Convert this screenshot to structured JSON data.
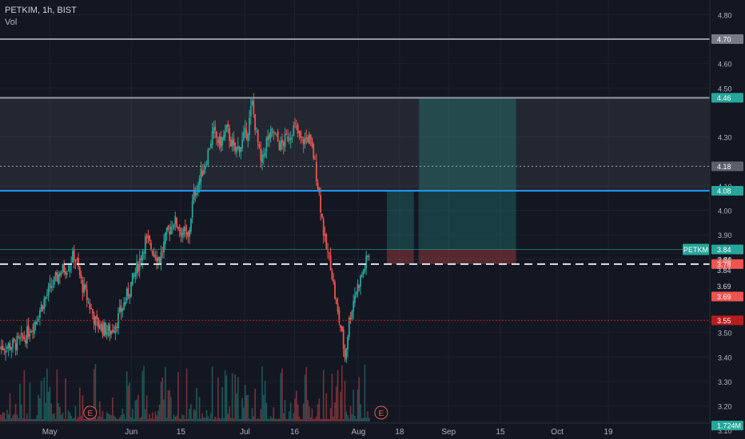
{
  "header": {
    "symbol_line": "PETKIM, 1h, BIST",
    "volume_label": "Vol"
  },
  "colors": {
    "background": "#131722",
    "up": "#26a69a",
    "down": "#ef5350",
    "blue_line": "#2196f3",
    "grey_line": "#9598a1"
  },
  "chart_data": {
    "type": "candlestick",
    "symbol": "PETKIM",
    "interval": "1h",
    "exchange": "BIST",
    "ylim": [
      3.13,
      4.86
    ],
    "y_ticks": [
      "4.80",
      "4.60",
      "4.50",
      "4.30",
      "4.10",
      "4.00",
      "3.90",
      "3.80",
      "3.50",
      "3.40",
      "3.30",
      "3.20",
      "3.10"
    ],
    "x_ticks": [
      {
        "label": "May",
        "x": 0.07
      },
      {
        "label": "Jun",
        "x": 0.185
      },
      {
        "label": "15",
        "x": 0.255
      },
      {
        "label": "Jul",
        "x": 0.345
      },
      {
        "label": "16",
        "x": 0.415
      },
      {
        "label": "Aug",
        "x": 0.505
      },
      {
        "label": "18",
        "x": 0.563
      },
      {
        "label": "Sep",
        "x": 0.632
      },
      {
        "label": "15",
        "x": 0.705
      },
      {
        "label": "Oct",
        "x": 0.785
      },
      {
        "label": "19",
        "x": 0.857
      }
    ],
    "levels": [
      {
        "value": 4.7,
        "label": "4.70",
        "style": "solid-grey",
        "badge": "#787b86"
      },
      {
        "value": 4.46,
        "label": "4.46",
        "style": "solid-grey",
        "badge": "#26a69a"
      },
      {
        "value": 4.18,
        "label": "4.18",
        "style": "dotted",
        "badge": "#5d606b"
      },
      {
        "value": 4.08,
        "label": "4.08",
        "style": "solid-blue",
        "badge": "#26a69a"
      },
      {
        "value": 3.78,
        "label": "3.78",
        "style": "dashed-white",
        "badge": "#ef5350"
      },
      {
        "value": 3.55,
        "label": "3.55",
        "style": "dotted-red",
        "badge": "#b71c1c"
      }
    ],
    "price_labels": [
      {
        "value": 3.84,
        "label": "3.84",
        "badge": "#26a69a"
      },
      {
        "value": 3.84,
        "label": "3.84",
        "badge": "none",
        "offset": 1
      },
      {
        "value": 3.84,
        "label": "3.84",
        "badge": "none",
        "offset": 2
      },
      {
        "value": 3.69,
        "label": "3.69",
        "badge": "none"
      },
      {
        "value": 3.69,
        "label": "3.69",
        "badge": "#ef5350",
        "offset": 1
      },
      {
        "value": 3.12,
        "label": "1.724M",
        "badge": "#26a69a"
      }
    ],
    "last_price_tag": "PETKM",
    "last_price": 3.84,
    "zones": {
      "range_top": 4.46,
      "range_bottom": 4.08,
      "rr_small": {
        "entry": 3.84,
        "target": 4.08,
        "stop": 3.78
      },
      "rr_big": {
        "entry": 3.84,
        "target": 4.46,
        "stop": 3.78
      }
    },
    "events": [
      "E",
      "E"
    ],
    "series_path": [
      [
        0.0,
        3.44
      ],
      [
        0.02,
        3.45
      ],
      [
        0.035,
        3.48
      ],
      [
        0.05,
        3.55
      ],
      [
        0.06,
        3.62
      ],
      [
        0.075,
        3.7
      ],
      [
        0.085,
        3.75
      ],
      [
        0.095,
        3.77
      ],
      [
        0.105,
        3.82
      ],
      [
        0.115,
        3.7
      ],
      [
        0.125,
        3.62
      ],
      [
        0.135,
        3.54
      ],
      [
        0.145,
        3.52
      ],
      [
        0.155,
        3.5
      ],
      [
        0.165,
        3.55
      ],
      [
        0.175,
        3.62
      ],
      [
        0.185,
        3.7
      ],
      [
        0.195,
        3.78
      ],
      [
        0.205,
        3.88
      ],
      [
        0.215,
        3.84
      ],
      [
        0.225,
        3.8
      ],
      [
        0.235,
        3.9
      ],
      [
        0.245,
        3.96
      ],
      [
        0.255,
        3.92
      ],
      [
        0.265,
        3.88
      ],
      [
        0.272,
        4.05
      ],
      [
        0.28,
        4.12
      ],
      [
        0.29,
        4.2
      ],
      [
        0.3,
        4.32
      ],
      [
        0.31,
        4.27
      ],
      [
        0.32,
        4.33
      ],
      [
        0.33,
        4.24
      ],
      [
        0.34,
        4.27
      ],
      [
        0.35,
        4.34
      ],
      [
        0.355,
        4.44
      ],
      [
        0.362,
        4.3
      ],
      [
        0.368,
        4.18
      ],
      [
        0.375,
        4.28
      ],
      [
        0.385,
        4.32
      ],
      [
        0.395,
        4.26
      ],
      [
        0.405,
        4.3
      ],
      [
        0.415,
        4.34
      ],
      [
        0.425,
        4.28
      ],
      [
        0.435,
        4.3
      ],
      [
        0.442,
        4.22
      ],
      [
        0.45,
        4.06
      ],
      [
        0.458,
        3.86
      ],
      [
        0.466,
        3.78
      ],
      [
        0.474,
        3.6
      ],
      [
        0.48,
        3.52
      ],
      [
        0.486,
        3.4
      ],
      [
        0.492,
        3.55
      ],
      [
        0.5,
        3.66
      ],
      [
        0.508,
        3.72
      ],
      [
        0.515,
        3.78
      ],
      [
        0.52,
        3.82
      ]
    ]
  }
}
